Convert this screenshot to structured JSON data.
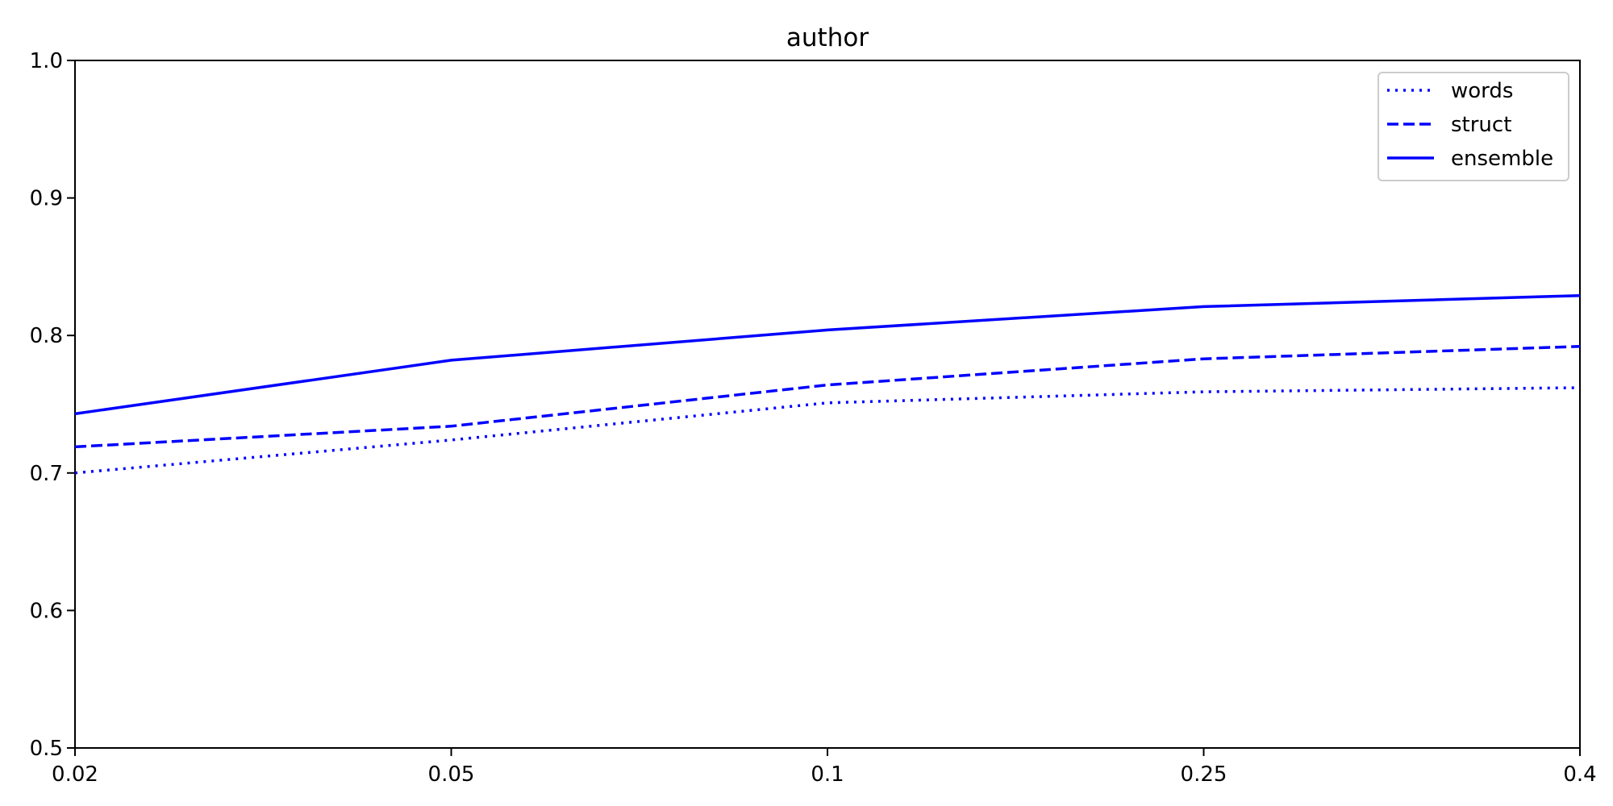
{
  "chart_data": {
    "type": "line",
    "title": "author",
    "xlabel": "",
    "ylabel": "",
    "x_categories": [
      "0.02",
      "0.05",
      "0.1",
      "0.25",
      "0.4"
    ],
    "ylim": [
      0.5,
      1.0
    ],
    "yticks": [
      "0.5",
      "0.6",
      "0.7",
      "0.8",
      "0.9",
      "1.0"
    ],
    "grid": false,
    "legend_position": "top-right",
    "series": [
      {
        "name": "words",
        "style": "dotted",
        "color": "#0000ff",
        "values": [
          0.7,
          0.724,
          0.751,
          0.759,
          0.762
        ]
      },
      {
        "name": "struct",
        "style": "dashed",
        "color": "#0000ff",
        "values": [
          0.719,
          0.734,
          0.764,
          0.783,
          0.792
        ]
      },
      {
        "name": "ensemble",
        "style": "solid",
        "color": "#0000ff",
        "values": [
          0.743,
          0.782,
          0.804,
          0.821,
          0.829
        ]
      }
    ]
  }
}
